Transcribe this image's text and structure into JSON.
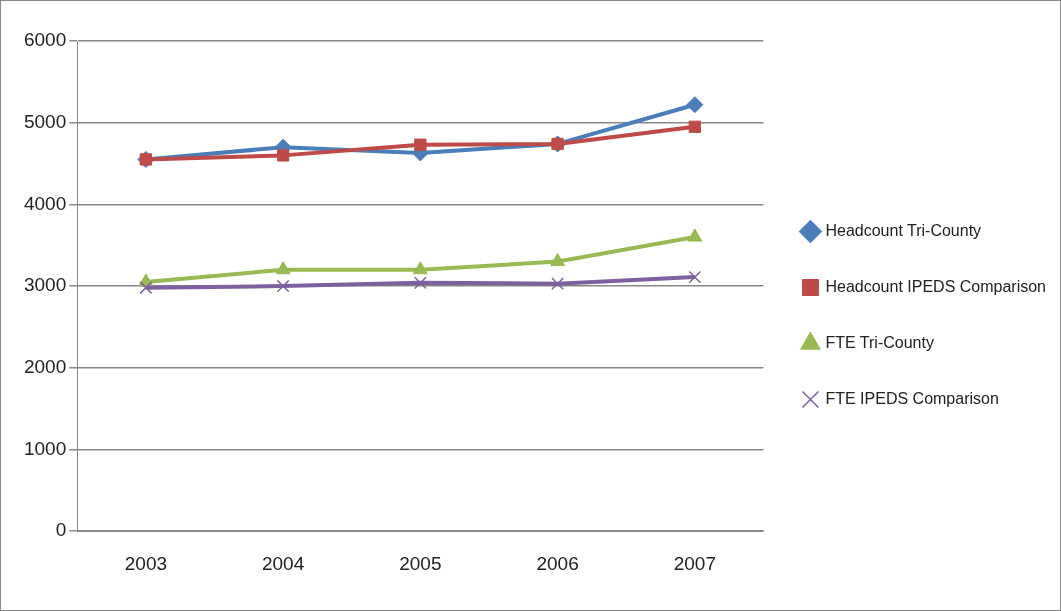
{
  "chart_data": {
    "type": "line",
    "categories": [
      "2003",
      "2004",
      "2005",
      "2006",
      "2007"
    ],
    "series": [
      {
        "name": "Headcount Tri-County",
        "color": "#4a7ebb",
        "marker": "diamond",
        "values": [
          4550,
          4700,
          4630,
          4740,
          5220
        ]
      },
      {
        "name": "Headcount IPEDS Comparison",
        "color": "#be4b48",
        "marker": "square",
        "values": [
          4550,
          4600,
          4730,
          4740,
          4950
        ]
      },
      {
        "name": "FTE Tri-County",
        "color": "#98b954",
        "marker": "triangle",
        "values": [
          3050,
          3200,
          3200,
          3300,
          3600
        ]
      },
      {
        "name": "FTE IPEDS Comparison",
        "color": "#7d60a0",
        "marker": "cross",
        "values": [
          2980,
          3000,
          3040,
          3030,
          3110
        ]
      }
    ],
    "ylim": [
      0,
      6000
    ],
    "yticks": [
      0,
      1000,
      2000,
      3000,
      4000,
      5000,
      6000
    ],
    "grid": "y",
    "legend": "right",
    "line_style": "solid"
  }
}
